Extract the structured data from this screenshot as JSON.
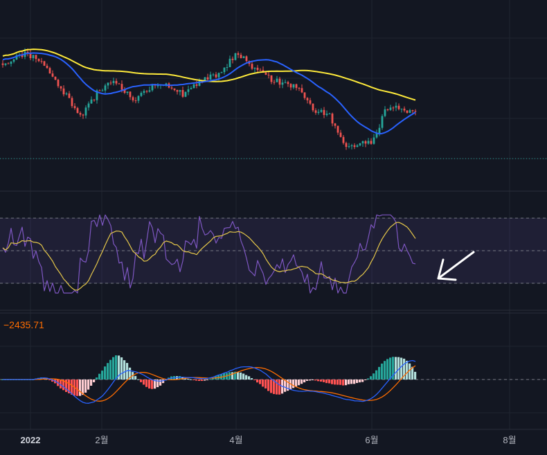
{
  "theme": {
    "background": "#131722",
    "grid": "#1f2430",
    "up_color": "#26a69a",
    "down_color": "#ef5350",
    "ma_fast_color": "#2962ff",
    "ma_slow_color": "#ffeb3b",
    "rsi_color": "#7e57c2",
    "rsi_ma_color": "#e6c84a",
    "macd_color": "#2962ff",
    "signal_color": "#ff6d00",
    "hist_up_strong": "#26a69a",
    "hist_up_weak": "#b2dfdb",
    "hist_down_strong": "#ff5252",
    "hist_down_weak": "#ffcdd2",
    "annotation_color": "#ffffff",
    "label_color": "#ff6d00"
  },
  "macd_label": "−2435.71",
  "x_axis": {
    "labels": [
      "2022",
      "2월",
      "4월",
      "6월",
      "8월"
    ]
  },
  "annotation": {
    "type": "arrow",
    "icon": "arrow-pointing-down-left-icon"
  },
  "chart_data": [
    {
      "type": "candlestick",
      "overlays": [
        "moving-average-fast",
        "moving-average-slow"
      ],
      "y_axis_labels_visible": false,
      "grid": true,
      "shape": {
        "closes_path": [
          [
            0,
            0.7
          ],
          [
            0.05,
            0.78
          ],
          [
            0.1,
            0.72
          ],
          [
            0.14,
            0.55
          ],
          [
            0.19,
            0.36
          ],
          [
            0.23,
            0.52
          ],
          [
            0.27,
            0.6
          ],
          [
            0.32,
            0.46
          ],
          [
            0.37,
            0.58
          ],
          [
            0.41,
            0.55
          ],
          [
            0.44,
            0.5
          ],
          [
            0.48,
            0.6
          ],
          [
            0.52,
            0.64
          ],
          [
            0.57,
            0.78
          ],
          [
            0.6,
            0.7
          ],
          [
            0.64,
            0.62
          ],
          [
            0.68,
            0.58
          ],
          [
            0.72,
            0.54
          ],
          [
            0.75,
            0.4
          ],
          [
            0.79,
            0.38
          ],
          [
            0.83,
            0.15
          ],
          [
            0.86,
            0.16
          ],
          [
            0.9,
            0.2
          ],
          [
            0.93,
            0.42
          ],
          [
            0.97,
            0.41
          ],
          [
            1.0,
            0.38
          ]
        ],
        "trend": "downtrend toward end"
      }
    },
    {
      "type": "line",
      "indicator": "RSI",
      "series": [
        {
          "key": "rsi"
        },
        {
          "key": "rsi-ma"
        }
      ],
      "bands": [
        "upper",
        "middle",
        "lower"
      ],
      "grid": true
    },
    {
      "type": "bar",
      "indicator": "MACD",
      "series": [
        {
          "key": "histogram"
        },
        {
          "key": "macd-line"
        },
        {
          "key": "signal-line"
        }
      ],
      "zero_line": true,
      "grid": true
    }
  ]
}
